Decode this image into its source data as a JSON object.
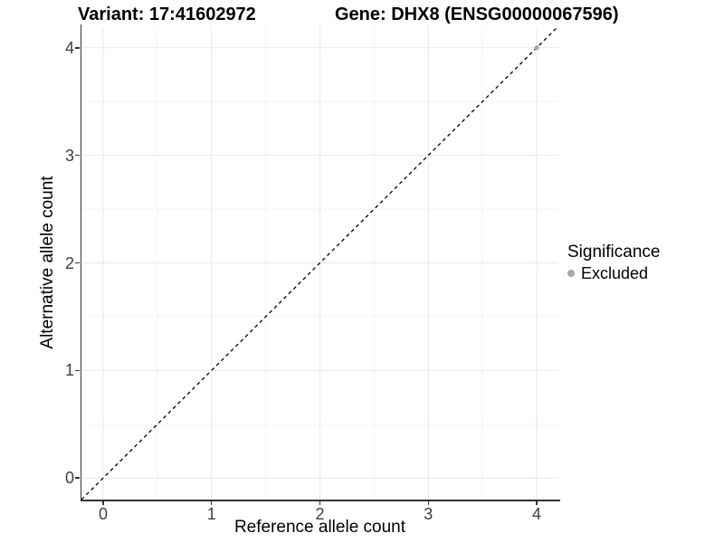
{
  "chart_data": {
    "type": "scatter",
    "title_parts": [
      "Variant: 17:41602972",
      "Gene: DHX8 (ENSG00000067596)"
    ],
    "xlabel": "Reference allele count",
    "ylabel": "Alternative allele count",
    "xlim": [
      -0.2,
      4.2
    ],
    "ylim": [
      -0.2,
      4.2
    ],
    "x_ticks": [
      0,
      1,
      2,
      3,
      4
    ],
    "y_ticks": [
      0,
      1,
      2,
      3,
      4
    ],
    "x_minor_ticks": [
      0.5,
      1.5,
      2.5,
      3.5
    ],
    "y_minor_ticks": [
      0.5,
      1.5,
      2.5,
      3.5
    ],
    "grid": true,
    "colors": {
      "major_grid": "#e8e8e8",
      "minor_grid": "#f4f4f4",
      "axis_line": "#333333",
      "reference_line": "#000000",
      "excluded_point": "#a6a6a6"
    },
    "reference_line": {
      "style": "dashed",
      "from": [
        -0.2,
        -0.2
      ],
      "to": [
        4.2,
        4.2
      ]
    },
    "series": [
      {
        "name": "Excluded",
        "color": "#a6a6a6",
        "points": [
          {
            "x": 4,
            "y": 4
          }
        ]
      }
    ],
    "legend": {
      "position": "right",
      "title": "Significance",
      "entries": [
        {
          "label": "Excluded",
          "color": "#a6a6a6"
        }
      ]
    }
  }
}
